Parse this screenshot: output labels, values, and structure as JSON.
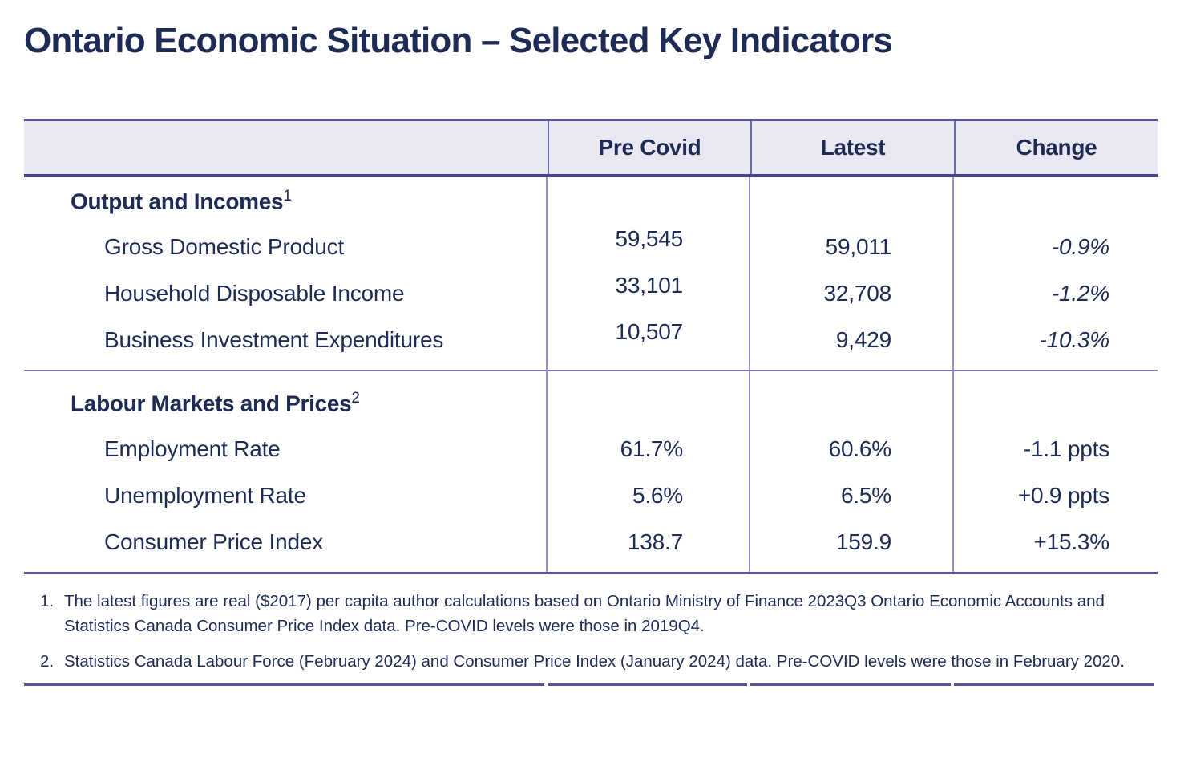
{
  "title": "Ontario Economic Situation – Selected Key Indicators",
  "colors": {
    "text_navy": "#1d2b55",
    "header_background": "#e9e8f2",
    "rule_strong": "#55549e",
    "rule_header_bottom": "#45448a",
    "divider_light": "#9491c9",
    "divider_header": "#6b69ae",
    "section_divider": "#7b79bb"
  },
  "table": {
    "header": {
      "pre_covid": "Pre Covid",
      "latest": "Latest",
      "change": "Change"
    },
    "sections": [
      {
        "title": "Output and Incomes",
        "sup": "1",
        "rows": [
          {
            "label": "Gross Domestic Product",
            "pre_covid": "59,545",
            "latest": "59,011",
            "change": "-0.9%"
          },
          {
            "label": "Household Disposable Income",
            "pre_covid": "33,101",
            "latest": "32,708",
            "change": "-1.2%"
          },
          {
            "label": "Business Investment Expenditures",
            "pre_covid": "10,507",
            "latest": "9,429",
            "change": "-10.3%"
          }
        ]
      },
      {
        "title": "Labour Markets and Prices",
        "sup": "2",
        "rows": [
          {
            "label": "Employment Rate",
            "pre_covid": "61.7%",
            "latest": "60.6%",
            "change": "-1.1 ppts"
          },
          {
            "label": "Unemployment Rate",
            "pre_covid": "5.6%",
            "latest": "6.5%",
            "change": "+0.9 ppts"
          },
          {
            "label": "Consumer Price Index",
            "pre_covid": "138.7",
            "latest": "159.9",
            "change": "+15.3%"
          }
        ]
      }
    ]
  },
  "footnotes": [
    {
      "number": "1.",
      "lines": [
        "The latest figures are real ($2017) per capita author calculations based on Ontario Ministry of Finance 2023Q3 Ontario Economic Accounts and",
        "Statistics Canada Consumer Price Index data. Pre-COVID levels were those in 2019Q4."
      ]
    },
    {
      "number": "2.",
      "lines": [
        "Statistics Canada Labour Force (February 2024) and Consumer Price Index (January 2024) data. Pre-COVID levels were those in February 2020."
      ]
    }
  ]
}
